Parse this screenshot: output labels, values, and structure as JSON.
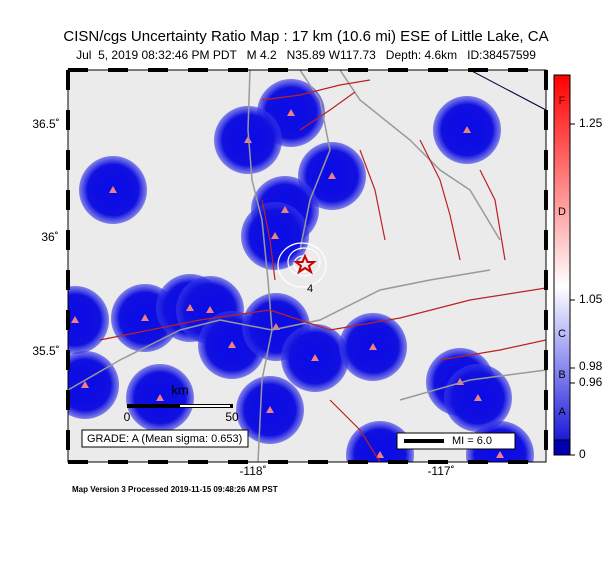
{
  "header": {
    "title": "CISN/cgs Uncertainty Ratio Map : 17 km (10.6 mi) ESE of Little Lake, CA",
    "subtitle": "Jul  5, 2019 08:32:46 PM PDT   M 4.2   N35.89 W117.73   Depth: 4.6km   ID:38457599"
  },
  "map": {
    "lat_labels": [
      "36.5˚",
      "36˚",
      "35.5˚"
    ],
    "lon_labels": [
      "-118˚",
      "-117˚"
    ],
    "contour_label": "4",
    "scale": {
      "unit": "km",
      "labels": [
        "0",
        "50"
      ]
    },
    "grade": "GRADE: A (Mean sigma: 0.653)",
    "legend": "MI = 6.0"
  },
  "colorbar": {
    "values": [
      "1.25",
      "1.05",
      "0.98",
      "0.96",
      "0"
    ],
    "letters": [
      "F",
      "D",
      "C",
      "B",
      "A"
    ]
  },
  "footer": "Map Version 3 Processed 2019-11-15 09:48:26 AM PST"
}
